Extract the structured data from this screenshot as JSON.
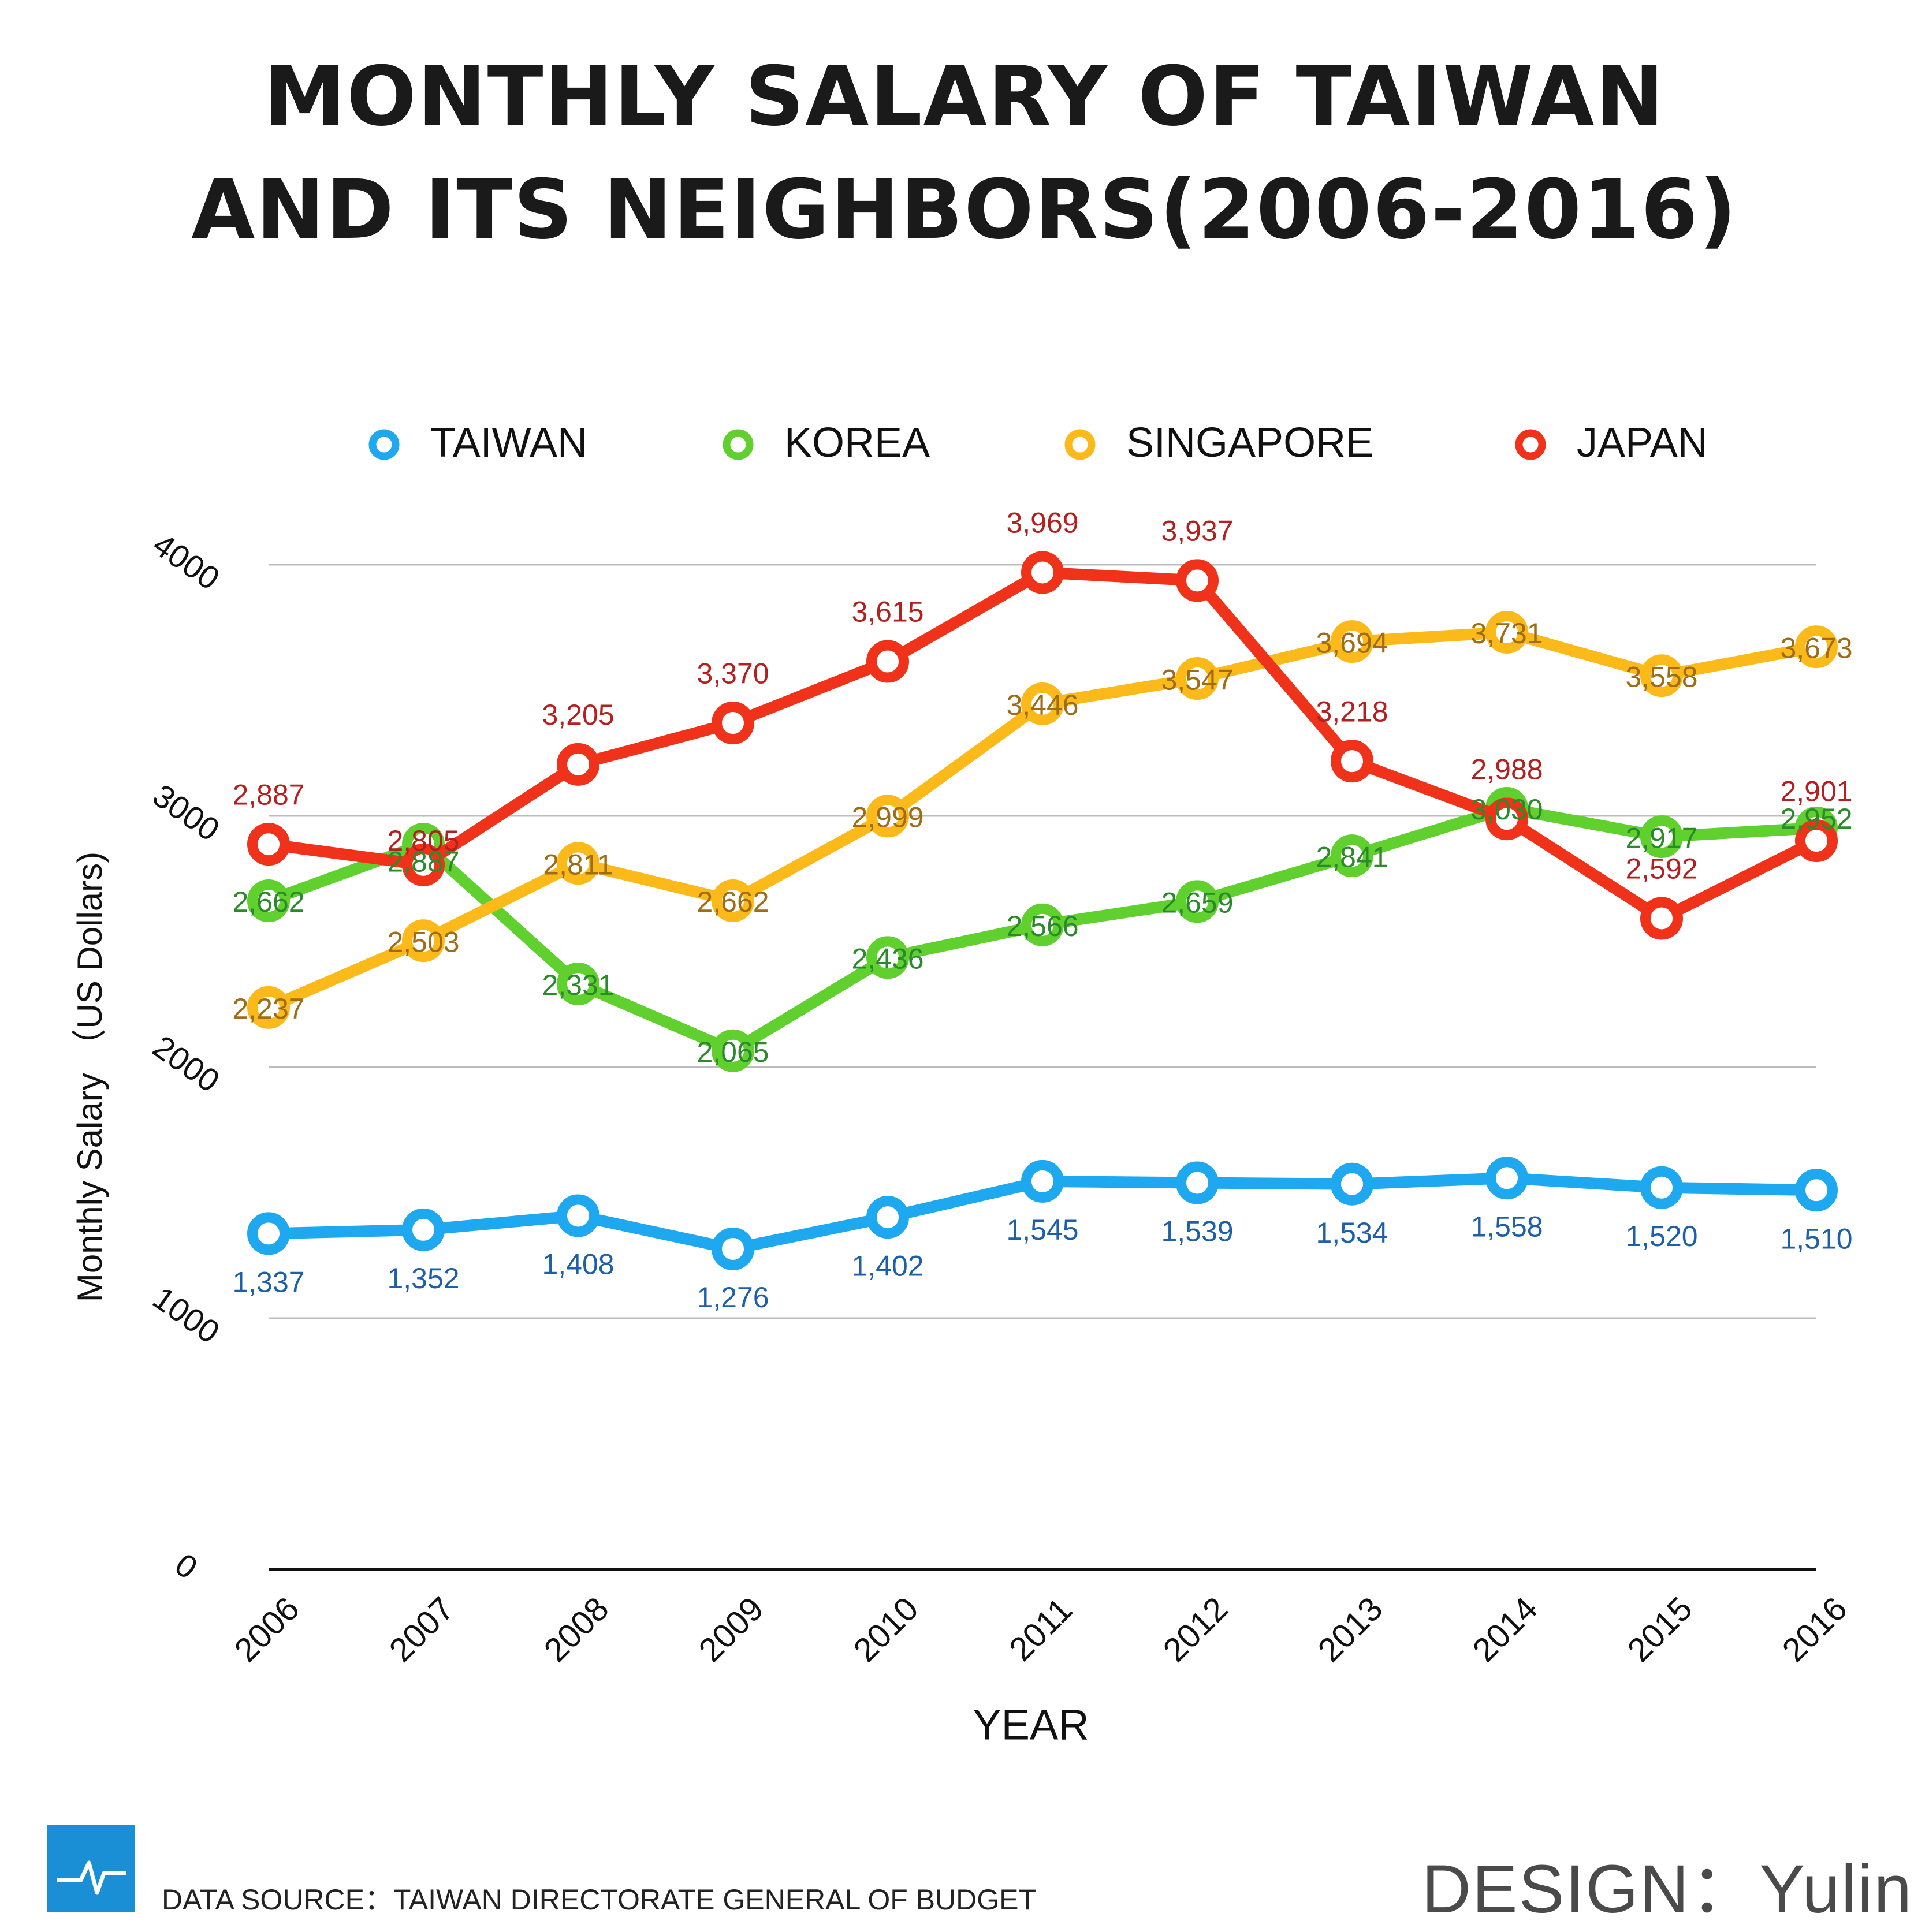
{
  "title_lines": [
    "MONTHLY SALARY OF TAIWAN",
    "AND ITS NEIGHBORS(2006-2016)"
  ],
  "footer": {
    "source": "DATA SOURCE：TAIWAN DIRECTORATE GENERAL OF BUDGET",
    "credit": "DESIGN：Yulin",
    "icon": "pulse-chart-icon"
  },
  "chart_data": {
    "type": "line",
    "title": "MONTHLY SALARY OF TAIWAN AND ITS NEIGHBORS(2006-2016)",
    "xlabel": "YEAR",
    "ylabel": "Monthly Salary （US Dollars)",
    "ylim": [
      0,
      4000
    ],
    "yticks": [
      "0",
      "1000",
      "2000",
      "3000",
      "4000"
    ],
    "ytick_values": [
      0,
      1000,
      2000,
      3000,
      4000
    ],
    "grid": true,
    "legend_position": "top",
    "categories": [
      "2006",
      "2007",
      "2008",
      "2009",
      "2010",
      "2011",
      "2012",
      "2013",
      "2014",
      "2015",
      "2016"
    ],
    "series": [
      {
        "name": "TAIWAN",
        "color": "#1da8f0",
        "label_color": "#1d5fa8",
        "values": [
          1337,
          1352,
          1408,
          1276,
          1402,
          1545,
          1539,
          1534,
          1558,
          1520,
          1510
        ],
        "labels": [
          "1,337",
          "1,352",
          "1,408",
          "1,276",
          "1,402",
          "1,545",
          "1,539",
          "1,534",
          "1,558",
          "1,520",
          "1,510"
        ]
      },
      {
        "name": "KOREA",
        "color": "#5fd02e",
        "label_color": "#2b8a2b",
        "values": [
          2662,
          2887,
          2331,
          2065,
          2436,
          2566,
          2659,
          2841,
          3030,
          2917,
          2952
        ],
        "labels": [
          "2,662",
          "2,887",
          "2,331",
          "2,065",
          "2,436",
          "2,566",
          "2,659",
          "2,841",
          "3,030",
          "2,917",
          "2,952"
        ]
      },
      {
        "name": "SINGAPORE",
        "color": "#fbba1a",
        "label_color": "#a06c16",
        "values": [
          2237,
          2503,
          2811,
          2662,
          2999,
          3446,
          3547,
          3694,
          3731,
          3558,
          3673
        ],
        "labels": [
          "2,237",
          "2,503",
          "2,811",
          "2,662",
          "2,999",
          "3,446",
          "3,547",
          "3,694",
          "3,731",
          "3,558",
          "3,673"
        ]
      },
      {
        "name": "JAPAN",
        "color": "#f0321a",
        "label_color": "#b41f1f",
        "values": [
          2887,
          2805,
          3205,
          3370,
          3615,
          3969,
          3937,
          3218,
          2988,
          2592,
          2901
        ],
        "labels": [
          "2,887",
          "2,805",
          "3,205",
          "3,370",
          "3,615",
          "3,969",
          "3,937",
          "3,218",
          "2,988",
          "2,592",
          "2,901"
        ]
      }
    ]
  }
}
